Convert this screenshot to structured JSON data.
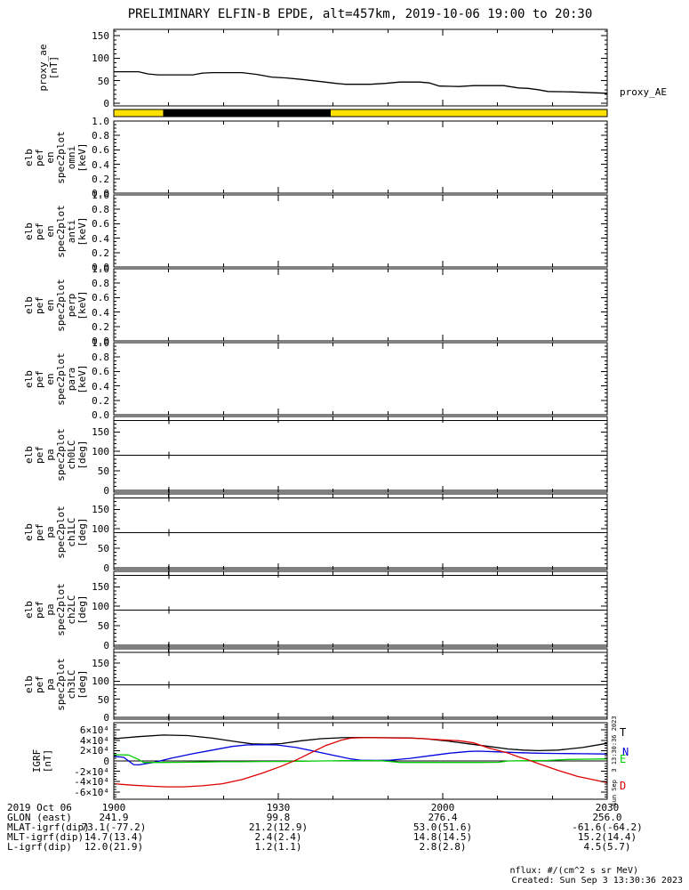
{
  "title": "PRELIMINARY ELFIN-B EPDE, alt=457km, 2019-10-06 19:00 to 20:30",
  "colors": {
    "frame": "#000000",
    "strip_yellow": "#ffe100",
    "strip_black": "#000000",
    "igrf_T": "#000000",
    "igrf_N": "#0000dd",
    "igrf_E": "#00cc00",
    "igrf_D": "#dd0000"
  },
  "legend": {
    "proxy_ae": "proxy_AE",
    "igrf": [
      {
        "label": "T",
        "color": "#000000"
      },
      {
        "label": "N",
        "color": "#0000dd"
      },
      {
        "label": "E",
        "color": "#00cc00"
      },
      {
        "label": "D",
        "color": "#dd0000"
      }
    ]
  },
  "xaxis": {
    "start": "19:00",
    "end": "20:30",
    "major_ticks": [
      "1900",
      "1930",
      "2000",
      "2030"
    ],
    "minor_intervals": 9
  },
  "annotations": {
    "date_label": "2019 Oct 06",
    "time_ticks": [
      "1900",
      "1930",
      "2000",
      "2030"
    ],
    "rows": [
      {
        "label": "GLON (east)",
        "values": [
          "241.9",
          "99.8",
          "276.4",
          "256.0"
        ]
      },
      {
        "label": "MLAT-igrf(dip)",
        "values": [
          "73.1(-77.2)",
          "21.2(12.9)",
          "53.0(51.6)",
          "-61.6(-64.2)"
        ]
      },
      {
        "label": "MLT-igrf(dip)",
        "values": [
          "14.7(13.4)",
          "2.4(2.4)",
          "14.8(14.5)",
          "15.2(14.4)"
        ]
      },
      {
        "label": "L-igrf(dip)",
        "values": [
          "12.0(21.9)",
          "1.2(1.1)",
          "2.8(2.8)",
          "4.5(5.7)"
        ]
      }
    ]
  },
  "vertical_note": "Sun Sep  3 13:30:36 2023",
  "footer": {
    "nflux": "nflux: #/(cm^2 s sr MeV)",
    "created": "Created: Sun Sep  3 13:30:36 2023"
  },
  "chart_data": [
    {
      "id": "proxy_ae",
      "type": "line",
      "ylabel": "proxy_ae\n[nT]",
      "yrange": [
        -6,
        164
      ],
      "y_minor_step": 10,
      "yticks": [
        {
          "v": 0,
          "label": "0"
        },
        {
          "v": 50,
          "label": "50"
        },
        {
          "v": 100,
          "label": "100"
        },
        {
          "v": 150,
          "label": "150"
        }
      ],
      "series": [
        {
          "name": "proxy_AE",
          "color": "#000000",
          "points": [
            [
              0,
              70
            ],
            [
              0.05,
              70
            ],
            [
              0.07,
              65
            ],
            [
              0.09,
              63
            ],
            [
              0.16,
              63
            ],
            [
              0.18,
              67
            ],
            [
              0.2,
              68
            ],
            [
              0.26,
              68
            ],
            [
              0.29,
              64
            ],
            [
              0.32,
              58
            ],
            [
              0.35,
              56
            ],
            [
              0.38,
              53
            ],
            [
              0.42,
              48
            ],
            [
              0.45,
              44
            ],
            [
              0.47,
              42
            ],
            [
              0.52,
              42
            ],
            [
              0.55,
              44
            ],
            [
              0.58,
              47
            ],
            [
              0.62,
              47
            ],
            [
              0.64,
              45
            ],
            [
              0.66,
              38
            ],
            [
              0.7,
              37
            ],
            [
              0.73,
              39
            ],
            [
              0.79,
              39
            ],
            [
              0.82,
              34
            ],
            [
              0.84,
              33
            ],
            [
              0.86,
              30
            ],
            [
              0.88,
              26
            ],
            [
              0.93,
              25
            ],
            [
              1,
              22
            ]
          ]
        }
      ]
    },
    {
      "id": "status_bar",
      "type": "strip",
      "segments": [
        {
          "from": 0.0,
          "to": 0.1,
          "color": "#ffe100"
        },
        {
          "from": 0.1,
          "to": 0.44,
          "color": "#000000"
        },
        {
          "from": 0.44,
          "to": 1.0,
          "color": "#ffe100"
        }
      ]
    },
    {
      "id": "elb_pef_en_spec2plot_omni",
      "type": "spectrogram",
      "ylabel": "elb\npef\nen\nspec2plot\nomni\n[keV]",
      "yrange": [
        0,
        1
      ],
      "y_minor_step": 0.05,
      "yticks": [
        {
          "v": 0,
          "label": "0.0"
        },
        {
          "v": 0.2,
          "label": "0.2"
        },
        {
          "v": 0.4,
          "label": "0.4"
        },
        {
          "v": 0.6,
          "label": "0.6"
        },
        {
          "v": 0.8,
          "label": "0.8"
        },
        {
          "v": 1,
          "label": "1.0"
        }
      ],
      "empty": true
    },
    {
      "id": "elb_pef_en_spec2plot_anti",
      "type": "spectrogram",
      "ylabel": "elb\npef\nen\nspec2plot\nanti\n[keV]",
      "yrange": [
        0,
        1
      ],
      "y_minor_step": 0.05,
      "yticks": [
        {
          "v": 0,
          "label": "0.0"
        },
        {
          "v": 0.2,
          "label": "0.2"
        },
        {
          "v": 0.4,
          "label": "0.4"
        },
        {
          "v": 0.6,
          "label": "0.6"
        },
        {
          "v": 0.8,
          "label": "0.8"
        },
        {
          "v": 1,
          "label": "1.0"
        }
      ],
      "empty": true
    },
    {
      "id": "elb_pef_en_spec2plot_perp",
      "type": "spectrogram",
      "ylabel": "elb\npef\nen\nspec2plot\nperp\n[keV]",
      "yrange": [
        0,
        1
      ],
      "y_minor_step": 0.05,
      "yticks": [
        {
          "v": 0,
          "label": "0.0"
        },
        {
          "v": 0.2,
          "label": "0.2"
        },
        {
          "v": 0.4,
          "label": "0.4"
        },
        {
          "v": 0.6,
          "label": "0.6"
        },
        {
          "v": 0.8,
          "label": "0.8"
        },
        {
          "v": 1,
          "label": "1.0"
        }
      ],
      "empty": true
    },
    {
      "id": "elb_pef_en_spec2plot_para",
      "type": "spectrogram",
      "ylabel": "elb\npef\nen\nspec2plot\npara\n[keV]",
      "yrange": [
        0,
        1
      ],
      "y_minor_step": 0.05,
      "yticks": [
        {
          "v": 0,
          "label": "0.0"
        },
        {
          "v": 0.2,
          "label": "0.2"
        },
        {
          "v": 0.4,
          "label": "0.4"
        },
        {
          "v": 0.6,
          "label": "0.6"
        },
        {
          "v": 0.8,
          "label": "0.8"
        },
        {
          "v": 1,
          "label": "1.0"
        }
      ],
      "empty": true
    },
    {
      "id": "elb_pef_pa_spec2plot_ch0LC",
      "type": "spectrogram",
      "ylabel": "elb\npef\npa\nspec2plot\nch0LC\n[deg]",
      "yrange": [
        -5,
        190
      ],
      "y_minor_step": 10,
      "yticks": [
        {
          "v": 0,
          "label": "0"
        },
        {
          "v": 50,
          "label": "50"
        },
        {
          "v": 100,
          "label": "100"
        },
        {
          "v": 150,
          "label": "150"
        }
      ],
      "ref_lines": [
        0,
        90,
        180
      ],
      "marker_x": [
        0.112
      ],
      "empty": true
    },
    {
      "id": "elb_pef_pa_spec2plot_ch1LC",
      "type": "spectrogram",
      "ylabel": "elb\npef\npa\nspec2plot\nch1LC\n[deg]",
      "yrange": [
        -5,
        190
      ],
      "y_minor_step": 10,
      "yticks": [
        {
          "v": 0,
          "label": "0"
        },
        {
          "v": 50,
          "label": "50"
        },
        {
          "v": 100,
          "label": "100"
        },
        {
          "v": 150,
          "label": "150"
        }
      ],
      "ref_lines": [
        0,
        90,
        180
      ],
      "marker_x": [
        0.112
      ],
      "empty": true
    },
    {
      "id": "elb_pef_pa_spec2plot_ch2LC",
      "type": "spectrogram",
      "ylabel": "elb\npef\npa\nspec2plot\nch2LC\n[deg]",
      "yrange": [
        -5,
        190
      ],
      "y_minor_step": 10,
      "yticks": [
        {
          "v": 0,
          "label": "0"
        },
        {
          "v": 50,
          "label": "50"
        },
        {
          "v": 100,
          "label": "100"
        },
        {
          "v": 150,
          "label": "150"
        }
      ],
      "ref_lines": [
        0,
        90,
        180
      ],
      "marker_x": [
        0.112
      ],
      "empty": true
    },
    {
      "id": "elb_pef_pa_spec2plot_ch3LC",
      "type": "spectrogram",
      "ylabel": "elb\npef\npa\nspec2plot\nch3LC\n[deg]",
      "yrange": [
        -5,
        190
      ],
      "y_minor_step": 10,
      "yticks": [
        {
          "v": 0,
          "label": "0"
        },
        {
          "v": 50,
          "label": "50"
        },
        {
          "v": 100,
          "label": "100"
        },
        {
          "v": 150,
          "label": "150"
        }
      ],
      "ref_lines": [
        0,
        90,
        180
      ],
      "marker_x": [
        0.112
      ],
      "empty": true
    },
    {
      "id": "igrf",
      "type": "line",
      "ylabel": "IGRF\n[nT]",
      "yrange": [
        -74000,
        74000
      ],
      "y_minor_step": 5000,
      "yticks": [
        {
          "v": 60000,
          "label": "6×10⁴"
        },
        {
          "v": 40000,
          "label": "4×10⁴"
        },
        {
          "v": 20000,
          "label": "2×10⁴"
        },
        {
          "v": 0,
          "label": "0"
        },
        {
          "v": -20000,
          "label": "-2×10⁴"
        },
        {
          "v": -40000,
          "label": "-4×10⁴"
        },
        {
          "v": -60000,
          "label": "-6×10⁴"
        }
      ],
      "ref_lines": [
        0
      ],
      "series": [
        {
          "name": "T",
          "color": "#000000",
          "points": [
            [
              0,
              43000
            ],
            [
              0.05,
              47000
            ],
            [
              0.1,
              50000
            ],
            [
              0.15,
              49000
            ],
            [
              0.2,
              44000
            ],
            [
              0.25,
              37000
            ],
            [
              0.28,
              33000
            ],
            [
              0.31,
              32500
            ],
            [
              0.34,
              33500
            ],
            [
              0.38,
              39000
            ],
            [
              0.42,
              43000
            ],
            [
              0.46,
              45000
            ],
            [
              0.5,
              45500
            ],
            [
              0.55,
              45000
            ],
            [
              0.6,
              44500
            ],
            [
              0.63,
              43000
            ],
            [
              0.68,
              38000
            ],
            [
              0.72,
              33000
            ],
            [
              0.76,
              28000
            ],
            [
              0.8,
              23000
            ],
            [
              0.83,
              21000
            ],
            [
              0.86,
              20000
            ],
            [
              0.9,
              21000
            ],
            [
              0.95,
              26000
            ],
            [
              1,
              34000
            ]
          ]
        },
        {
          "name": "N",
          "color": "#0000dd",
          "points": [
            [
              0,
              9000
            ],
            [
              0.02,
              7000
            ],
            [
              0.04,
              -7000
            ],
            [
              0.05,
              -7500
            ],
            [
              0.08,
              -3000
            ],
            [
              0.12,
              6000
            ],
            [
              0.16,
              14000
            ],
            [
              0.2,
              21000
            ],
            [
              0.24,
              28000
            ],
            [
              0.27,
              31000
            ],
            [
              0.3,
              31500
            ],
            [
              0.33,
              31000
            ],
            [
              0.37,
              26000
            ],
            [
              0.41,
              18000
            ],
            [
              0.45,
              10000
            ],
            [
              0.48,
              4000
            ],
            [
              0.5,
              1500
            ],
            [
              0.53,
              1000
            ],
            [
              0.56,
              1500
            ],
            [
              0.6,
              5000
            ],
            [
              0.64,
              10000
            ],
            [
              0.68,
              15000
            ],
            [
              0.72,
              18500
            ],
            [
              0.74,
              19000
            ],
            [
              0.78,
              17500
            ],
            [
              0.82,
              16000
            ],
            [
              0.86,
              15000
            ],
            [
              0.9,
              14500
            ],
            [
              0.95,
              14000
            ],
            [
              1,
              13500
            ]
          ]
        },
        {
          "name": "E",
          "color": "#00cc00",
          "points": [
            [
              0,
              12000
            ],
            [
              0.03,
              11500
            ],
            [
              0.05,
              3000
            ],
            [
              0.06,
              -3000
            ],
            [
              0.1,
              -3000
            ],
            [
              0.14,
              -2500
            ],
            [
              0.18,
              -2000
            ],
            [
              0.22,
              -1500
            ],
            [
              0.26,
              -1500
            ],
            [
              0.3,
              -1000
            ],
            [
              0.34,
              -1000
            ],
            [
              0.38,
              -500
            ],
            [
              0.42,
              0
            ],
            [
              0.46,
              500
            ],
            [
              0.5,
              500
            ],
            [
              0.54,
              500
            ],
            [
              0.56,
              -1000
            ],
            [
              0.58,
              -3000
            ],
            [
              0.62,
              -3000
            ],
            [
              0.66,
              -3000
            ],
            [
              0.7,
              -3000
            ],
            [
              0.74,
              -3000
            ],
            [
              0.78,
              -2500
            ],
            [
              0.8,
              0
            ],
            [
              0.84,
              500
            ],
            [
              0.88,
              1000
            ],
            [
              0.92,
              3000
            ],
            [
              0.96,
              3500
            ],
            [
              1,
              4000
            ]
          ]
        },
        {
          "name": "D",
          "color": "#dd0000",
          "points": [
            [
              0,
              -44000
            ],
            [
              0.04,
              -47000
            ],
            [
              0.08,
              -49000
            ],
            [
              0.11,
              -50000
            ],
            [
              0.14,
              -50000
            ],
            [
              0.18,
              -48000
            ],
            [
              0.22,
              -44000
            ],
            [
              0.26,
              -36000
            ],
            [
              0.3,
              -24000
            ],
            [
              0.34,
              -10000
            ],
            [
              0.37,
              2000
            ],
            [
              0.4,
              16000
            ],
            [
              0.43,
              30000
            ],
            [
              0.46,
              40000
            ],
            [
              0.48,
              44000
            ],
            [
              0.5,
              45000
            ],
            [
              0.53,
              45000
            ],
            [
              0.56,
              44500
            ],
            [
              0.6,
              44000
            ],
            [
              0.63,
              43000
            ],
            [
              0.66,
              41000
            ],
            [
              0.7,
              39000
            ],
            [
              0.73,
              35000
            ],
            [
              0.76,
              25000
            ],
            [
              0.8,
              15000
            ],
            [
              0.82,
              8000
            ],
            [
              0.84,
              2000
            ],
            [
              0.86,
              -5000
            ],
            [
              0.9,
              -18000
            ],
            [
              0.94,
              -30000
            ],
            [
              1,
              -42000
            ]
          ]
        }
      ]
    }
  ]
}
